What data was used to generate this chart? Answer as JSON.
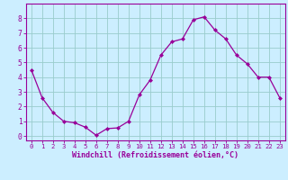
{
  "x": [
    0,
    1,
    2,
    3,
    4,
    5,
    6,
    7,
    8,
    9,
    10,
    11,
    12,
    13,
    14,
    15,
    16,
    17,
    18,
    19,
    20,
    21,
    22,
    23
  ],
  "y": [
    4.5,
    2.6,
    1.6,
    1.0,
    0.9,
    0.6,
    0.05,
    0.5,
    0.55,
    1.0,
    2.8,
    3.8,
    5.5,
    6.4,
    6.6,
    7.9,
    8.1,
    7.2,
    6.6,
    5.5,
    4.9,
    4.0,
    4.0,
    2.6
  ],
  "line_color": "#990099",
  "marker": "D",
  "marker_size": 2.0,
  "bg_color": "#cceeff",
  "grid_color": "#99cccc",
  "xlabel": "Windchill (Refroidissement éolien,°C)",
  "xlabel_color": "#990099",
  "tick_color": "#990099",
  "ylim": [
    -0.3,
    9.0
  ],
  "xlim": [
    -0.5,
    23.5
  ],
  "yticks": [
    0,
    1,
    2,
    3,
    4,
    5,
    6,
    7,
    8
  ],
  "xticks": [
    0,
    1,
    2,
    3,
    4,
    5,
    6,
    7,
    8,
    9,
    10,
    11,
    12,
    13,
    14,
    15,
    16,
    17,
    18,
    19,
    20,
    21,
    22,
    23
  ],
  "spine_color": "#990099",
  "xlabel_fontsize": 6.0,
  "xtick_fontsize": 5.2,
  "ytick_fontsize": 5.8
}
